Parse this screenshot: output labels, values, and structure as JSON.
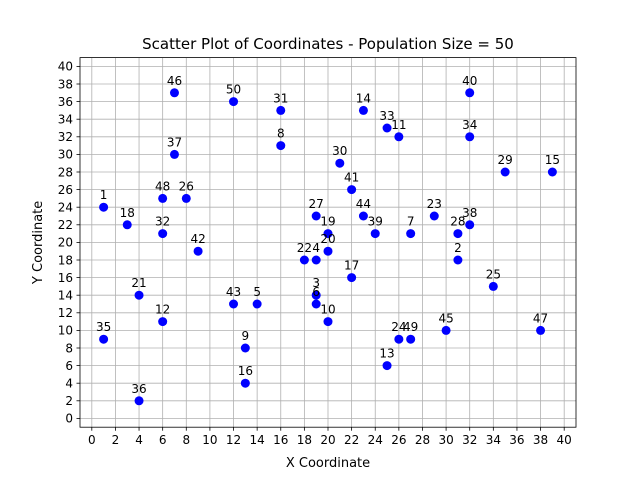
{
  "chart_data": {
    "type": "scatter",
    "title": "Scatter Plot of Coordinates - Population Size = 50",
    "xlabel": "X Coordinate",
    "ylabel": "Y Coordinate",
    "xlim": [
      -1,
      41
    ],
    "ylim": [
      -1,
      41
    ],
    "xticks": [
      0,
      2,
      4,
      6,
      8,
      10,
      12,
      14,
      16,
      18,
      20,
      22,
      24,
      26,
      28,
      30,
      32,
      34,
      36,
      38,
      40
    ],
    "yticks": [
      0,
      2,
      4,
      6,
      8,
      10,
      12,
      14,
      16,
      18,
      20,
      22,
      24,
      26,
      28,
      30,
      32,
      34,
      36,
      38,
      40
    ],
    "grid": true,
    "point_color": "#0000ff",
    "points": [
      {
        "label": "1",
        "x": 1,
        "y": 24
      },
      {
        "label": "2",
        "x": 31,
        "y": 18
      },
      {
        "label": "3",
        "x": 19,
        "y": 14
      },
      {
        "label": "4",
        "x": 19,
        "y": 18
      },
      {
        "label": "5",
        "x": 14,
        "y": 13
      },
      {
        "label": "6",
        "x": 19,
        "y": 13
      },
      {
        "label": "7",
        "x": 27,
        "y": 21
      },
      {
        "label": "8",
        "x": 16,
        "y": 31
      },
      {
        "label": "9",
        "x": 13,
        "y": 8
      },
      {
        "label": "10",
        "x": 20,
        "y": 11
      },
      {
        "label": "11",
        "x": 26,
        "y": 32
      },
      {
        "label": "12",
        "x": 6,
        "y": 11
      },
      {
        "label": "13",
        "x": 25,
        "y": 6
      },
      {
        "label": "14",
        "x": 23,
        "y": 35
      },
      {
        "label": "15",
        "x": 39,
        "y": 28
      },
      {
        "label": "16",
        "x": 13,
        "y": 4
      },
      {
        "label": "17",
        "x": 22,
        "y": 16
      },
      {
        "label": "18",
        "x": 3,
        "y": 22
      },
      {
        "label": "19",
        "x": 20,
        "y": 21
      },
      {
        "label": "20",
        "x": 20,
        "y": 19
      },
      {
        "label": "21",
        "x": 4,
        "y": 14
      },
      {
        "label": "22",
        "x": 18,
        "y": 18
      },
      {
        "label": "23",
        "x": 29,
        "y": 23
      },
      {
        "label": "24",
        "x": 26,
        "y": 9
      },
      {
        "label": "25",
        "x": 34,
        "y": 15
      },
      {
        "label": "26",
        "x": 8,
        "y": 25
      },
      {
        "label": "27",
        "x": 19,
        "y": 23
      },
      {
        "label": "28",
        "x": 31,
        "y": 21
      },
      {
        "label": "29",
        "x": 35,
        "y": 28
      },
      {
        "label": "30",
        "x": 21,
        "y": 29
      },
      {
        "label": "31",
        "x": 16,
        "y": 35
      },
      {
        "label": "32",
        "x": 6,
        "y": 21
      },
      {
        "label": "33",
        "x": 25,
        "y": 33
      },
      {
        "label": "34",
        "x": 32,
        "y": 32
      },
      {
        "label": "35",
        "x": 1,
        "y": 9
      },
      {
        "label": "36",
        "x": 4,
        "y": 2
      },
      {
        "label": "37",
        "x": 7,
        "y": 30
      },
      {
        "label": "38",
        "x": 32,
        "y": 22
      },
      {
        "label": "39",
        "x": 24,
        "y": 21
      },
      {
        "label": "40",
        "x": 32,
        "y": 37
      },
      {
        "label": "41",
        "x": 22,
        "y": 26
      },
      {
        "label": "42",
        "x": 9,
        "y": 19
      },
      {
        "label": "43",
        "x": 12,
        "y": 13
      },
      {
        "label": "44",
        "x": 23,
        "y": 23
      },
      {
        "label": "45",
        "x": 30,
        "y": 10
      },
      {
        "label": "46",
        "x": 7,
        "y": 37
      },
      {
        "label": "47",
        "x": 38,
        "y": 10
      },
      {
        "label": "48",
        "x": 6,
        "y": 25
      },
      {
        "label": "49",
        "x": 27,
        "y": 9
      },
      {
        "label": "50",
        "x": 12,
        "y": 36
      }
    ]
  }
}
